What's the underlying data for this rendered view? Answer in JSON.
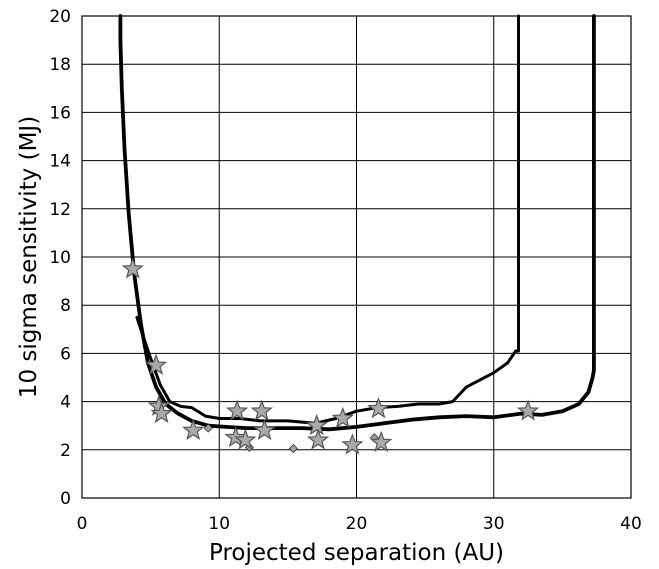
{
  "chart_data": {
    "type": "line",
    "title": "",
    "xlabel": "Projected separation (AU)",
    "ylabel": "10 sigma sensitivity (MJ)",
    "xlim": [
      0,
      40
    ],
    "ylim": [
      0,
      20
    ],
    "xticks": [
      0,
      10,
      20,
      30,
      40
    ],
    "yticks": [
      0,
      2,
      4,
      6,
      8,
      10,
      12,
      14,
      16,
      18,
      20
    ],
    "grid": true,
    "legend": "none",
    "series": [
      {
        "style": "thick",
        "x": [
          2.8,
          2.8,
          2.9,
          3.1,
          3.4,
          3.8,
          4.3,
          4.8,
          5.4,
          6.1,
          7.0,
          8.0,
          9.2,
          10.5,
          12.0,
          14.0,
          16.0,
          18.0,
          20.0,
          22.0,
          24.0,
          26.0,
          28.0,
          30.0,
          32.0,
          33.5,
          35.0,
          36.2,
          36.9,
          37.2,
          37.3,
          37.3
        ],
        "y": [
          20,
          19.0,
          17.0,
          14.5,
          11.8,
          9.3,
          7.2,
          5.6,
          4.6,
          3.9,
          3.5,
          3.2,
          3.0,
          2.95,
          2.9,
          2.9,
          2.9,
          2.85,
          2.95,
          3.1,
          3.25,
          3.35,
          3.4,
          3.35,
          3.5,
          3.45,
          3.6,
          3.9,
          4.4,
          5.0,
          5.3,
          20
        ]
      },
      {
        "style": "medium",
        "x": [
          4.0,
          4.4,
          5.0,
          5.7,
          6.4,
          7.2,
          8.0,
          9.0,
          10.0,
          11.5,
          13.0,
          15.0,
          17.0,
          18.5,
          20.0,
          21.5,
          23.0,
          24.5,
          26.0,
          27.0,
          28.0,
          29.0,
          30.0,
          31.0,
          31.6,
          31.8,
          31.8
        ],
        "y": [
          7.5,
          6.8,
          5.8,
          4.7,
          4.0,
          3.8,
          3.75,
          3.4,
          3.3,
          3.3,
          3.2,
          3.2,
          3.1,
          3.3,
          3.6,
          3.75,
          3.8,
          3.9,
          3.9,
          4.0,
          4.6,
          4.9,
          5.2,
          5.6,
          6.1,
          6.1,
          20
        ]
      }
    ],
    "star_markers": [
      {
        "x": 3.7,
        "y": 9.5
      },
      {
        "x": 5.4,
        "y": 5.5
      },
      {
        "x": 5.6,
        "y": 3.8
      },
      {
        "x": 5.8,
        "y": 3.5
      },
      {
        "x": 8.1,
        "y": 2.8
      },
      {
        "x": 11.3,
        "y": 3.6
      },
      {
        "x": 11.2,
        "y": 2.5
      },
      {
        "x": 11.9,
        "y": 2.4
      },
      {
        "x": 13.1,
        "y": 3.6
      },
      {
        "x": 13.3,
        "y": 2.8
      },
      {
        "x": 17.1,
        "y": 3.0
      },
      {
        "x": 17.2,
        "y": 2.4
      },
      {
        "x": 19.0,
        "y": 3.3
      },
      {
        "x": 19.7,
        "y": 2.2
      },
      {
        "x": 21.6,
        "y": 3.7
      },
      {
        "x": 21.8,
        "y": 2.3
      },
      {
        "x": 32.5,
        "y": 3.6
      }
    ],
    "diamond_markers": [
      {
        "x": 9.2,
        "y": 2.9
      },
      {
        "x": 12.2,
        "y": 2.1
      },
      {
        "x": 15.4,
        "y": 2.05
      },
      {
        "x": 21.3,
        "y": 2.5
      }
    ],
    "colors": {
      "line": "#000000",
      "star_fill": "#a9a9a9",
      "star_stroke": "#555555",
      "diamond_fill": "#a0a0a0"
    }
  }
}
